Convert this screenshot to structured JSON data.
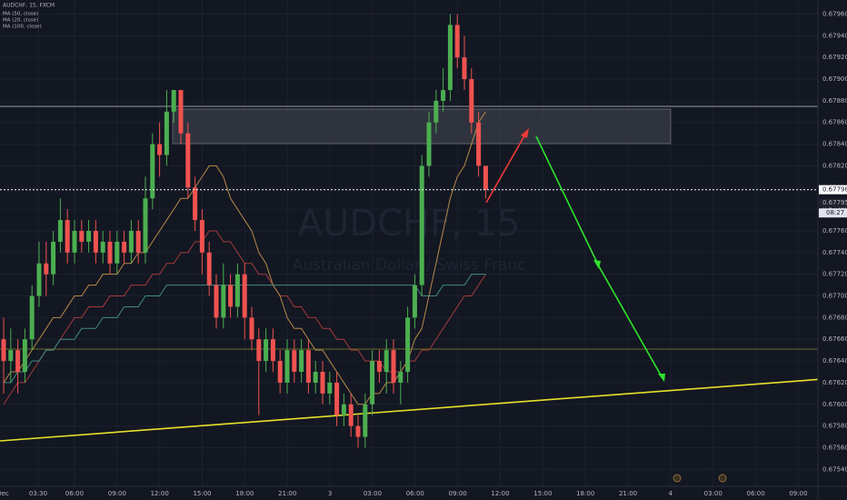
{
  "chart_data": {
    "type": "candlestick",
    "title": "AUDCHF, 15, FXCM",
    "watermark": "AUDCHF, 15",
    "watermark_subtitle": "Australian Dollar / Swiss Franc",
    "up_color": "#4caf50",
    "down_color": "#ef5350",
    "candles": {
      "open": [
        0.6766,
        0.6764,
        0.6765,
        0.6763,
        0.6766,
        0.677,
        0.6773,
        0.6772,
        0.6775,
        0.6777,
        0.6774,
        0.6776,
        0.6775,
        0.6776,
        0.6774,
        0.6775,
        0.6773,
        0.6775,
        0.6774,
        0.6776,
        0.6774,
        0.6779,
        0.6784,
        0.6783,
        0.6787,
        0.6789,
        0.6785,
        0.678,
        0.6777,
        0.6774,
        0.6771,
        0.6768,
        0.6771,
        0.6769,
        0.6772,
        0.6768,
        0.6766,
        0.6764,
        0.6766,
        0.6764,
        0.6762,
        0.6765,
        0.6763,
        0.6765,
        0.6762,
        0.6763,
        0.6761,
        0.6762,
        0.6759,
        0.676,
        0.6758,
        0.6757,
        0.676,
        0.6764,
        0.6763,
        0.6765,
        0.6762,
        0.6763,
        0.6768,
        0.6771,
        0.6782,
        0.6786,
        0.6788,
        0.6789,
        0.6795,
        0.6792,
        0.679,
        0.6786,
        0.6782
      ],
      "high": [
        0.6768,
        0.6767,
        0.6766,
        0.6767,
        0.6771,
        0.6775,
        0.6775,
        0.6776,
        0.6779,
        0.6778,
        0.6777,
        0.6777,
        0.6777,
        0.6777,
        0.6776,
        0.6776,
        0.6776,
        0.6776,
        0.6777,
        0.6777,
        0.6781,
        0.6785,
        0.6786,
        0.6789,
        0.6789,
        0.6789,
        0.6786,
        0.6781,
        0.6778,
        0.6775,
        0.6772,
        0.6773,
        0.6772,
        0.6773,
        0.6773,
        0.6769,
        0.6767,
        0.6767,
        0.6767,
        0.6765,
        0.6766,
        0.6766,
        0.6766,
        0.6766,
        0.6764,
        0.6764,
        0.6763,
        0.6763,
        0.6761,
        0.6761,
        0.6759,
        0.6761,
        0.6765,
        0.6765,
        0.6766,
        0.6766,
        0.6764,
        0.6769,
        0.6772,
        0.6783,
        0.6787,
        0.6789,
        0.6791,
        0.6796,
        0.6796,
        0.6794,
        0.6791,
        0.6787,
        0.6782
      ],
      "low": [
        0.6761,
        0.6762,
        0.6761,
        0.6762,
        0.6765,
        0.6769,
        0.677,
        0.6771,
        0.6774,
        0.6773,
        0.6773,
        0.6774,
        0.6774,
        0.6773,
        0.6773,
        0.6772,
        0.6772,
        0.6773,
        0.6773,
        0.6773,
        0.6773,
        0.6778,
        0.6781,
        0.6782,
        0.6786,
        0.6784,
        0.6779,
        0.6776,
        0.6772,
        0.677,
        0.6767,
        0.6767,
        0.6768,
        0.6768,
        0.6766,
        0.6765,
        0.6759,
        0.6763,
        0.6763,
        0.6761,
        0.6761,
        0.6762,
        0.6762,
        0.6761,
        0.6761,
        0.676,
        0.676,
        0.6758,
        0.6758,
        0.6757,
        0.6756,
        0.6756,
        0.6759,
        0.6762,
        0.6761,
        0.6761,
        0.676,
        0.6762,
        0.6767,
        0.677,
        0.6781,
        0.6785,
        0.6787,
        0.6788,
        0.6791,
        0.6789,
        0.6785,
        0.6781,
        0.6779
      ],
      "close": [
        0.6764,
        0.6765,
        0.6763,
        0.6766,
        0.677,
        0.6773,
        0.6772,
        0.6775,
        0.6777,
        0.6774,
        0.6776,
        0.6775,
        0.6776,
        0.6774,
        0.6775,
        0.6773,
        0.6775,
        0.6774,
        0.6776,
        0.6774,
        0.6779,
        0.6784,
        0.6783,
        0.6787,
        0.6789,
        0.6785,
        0.678,
        0.6777,
        0.6774,
        0.6771,
        0.6768,
        0.6771,
        0.6769,
        0.6772,
        0.6768,
        0.6766,
        0.6764,
        0.6766,
        0.6764,
        0.6762,
        0.6765,
        0.6763,
        0.6765,
        0.6762,
        0.6763,
        0.6761,
        0.6762,
        0.6759,
        0.676,
        0.6758,
        0.6757,
        0.676,
        0.6764,
        0.6763,
        0.6765,
        0.6762,
        0.6763,
        0.6768,
        0.6771,
        0.6782,
        0.6786,
        0.6788,
        0.6789,
        0.6795,
        0.6792,
        0.679,
        0.6786,
        0.6782,
        0.67798
      ]
    },
    "series": [
      {
        "name": "MA (50, close)",
        "color": "#a33b3b",
        "values": [
          0.676,
          0.6761,
          0.6762,
          0.6762,
          0.6763,
          0.6764,
          0.6765,
          0.6765,
          0.6766,
          0.6767,
          0.6768,
          0.6768,
          0.6769,
          0.6769,
          0.6769,
          0.677,
          0.677,
          0.677,
          0.6771,
          0.6771,
          0.6771,
          0.6772,
          0.6772,
          0.6773,
          0.6773,
          0.6774,
          0.6774,
          0.6775,
          0.6775,
          0.6776,
          0.6776,
          0.6775,
          0.6775,
          0.6774,
          0.6773,
          0.6773,
          0.6772,
          0.6772,
          0.6771,
          0.677,
          0.677,
          0.6769,
          0.6769,
          0.6768,
          0.6768,
          0.6767,
          0.6767,
          0.6766,
          0.6766,
          0.6765,
          0.6765,
          0.6764,
          0.6764,
          0.6764,
          0.6763,
          0.6763,
          0.6763,
          0.6764,
          0.6764,
          0.6765,
          0.6765,
          0.6766,
          0.6767,
          0.6768,
          0.6769,
          0.677,
          0.677,
          0.6771,
          0.6772
        ]
      },
      {
        "name": "MA (20, close)",
        "color": "#b8894a",
        "values": [
          0.6762,
          0.6763,
          0.6763,
          0.6764,
          0.6765,
          0.6766,
          0.6767,
          0.6768,
          0.6768,
          0.6769,
          0.677,
          0.677,
          0.6771,
          0.6771,
          0.6772,
          0.6772,
          0.6772,
          0.6773,
          0.6773,
          0.6774,
          0.6774,
          0.6775,
          0.6776,
          0.6777,
          0.6778,
          0.6779,
          0.6779,
          0.678,
          0.6781,
          0.6782,
          0.6782,
          0.6781,
          0.6779,
          0.6778,
          0.6777,
          0.6776,
          0.6774,
          0.6773,
          0.6771,
          0.677,
          0.6768,
          0.6767,
          0.6767,
          0.6766,
          0.6765,
          0.6765,
          0.6764,
          0.6763,
          0.6762,
          0.6761,
          0.676,
          0.676,
          0.6761,
          0.6761,
          0.6762,
          0.6762,
          0.6763,
          0.6764,
          0.6766,
          0.6767,
          0.677,
          0.6773,
          0.6776,
          0.6779,
          0.6781,
          0.6782,
          0.6784,
          0.6786,
          0.6787
        ]
      },
      {
        "name": "MA (100, close)",
        "color": "#3f8c82",
        "values": [
          0.6762,
          0.6762,
          0.6763,
          0.6763,
          0.6764,
          0.6764,
          0.6765,
          0.6765,
          0.6766,
          0.6766,
          0.6766,
          0.6767,
          0.6767,
          0.6767,
          0.6768,
          0.6768,
          0.6768,
          0.6769,
          0.6769,
          0.6769,
          0.677,
          0.677,
          0.677,
          0.6771,
          0.6771,
          0.6771,
          0.6771,
          0.6771,
          0.6771,
          0.6771,
          0.6771,
          0.6771,
          0.6771,
          0.6771,
          0.6771,
          0.6771,
          0.6771,
          0.6771,
          0.6771,
          0.6771,
          0.6771,
          0.6771,
          0.6771,
          0.6771,
          0.6771,
          0.6771,
          0.6771,
          0.6771,
          0.6771,
          0.6771,
          0.6771,
          0.6771,
          0.6771,
          0.6771,
          0.6771,
          0.6771,
          0.6771,
          0.6771,
          0.6771,
          0.677,
          0.677,
          0.677,
          0.6771,
          0.6771,
          0.6771,
          0.6771,
          0.6772,
          0.6772,
          0.6772
        ]
      }
    ],
    "last_price": 0.67798,
    "bid_price": 0.67795,
    "countdown": "08:27",
    "x_labels": [
      "Dec",
      "03:30",
      "06:00",
      "09:00",
      "12:00",
      "15:00",
      "18:00",
      "21:00",
      "3",
      "03:00",
      "06:00",
      "09:00",
      "12:00",
      "15:00",
      "18:00",
      "21:00",
      "4",
      "03:00",
      "06:00",
      "09:00"
    ],
    "ylim": [
      0.67526,
      0.67973
    ],
    "yticks": [
      {
        "value": 0.6754,
        "label": "0.67540"
      },
      {
        "value": 0.6756,
        "label": "0.67560"
      },
      {
        "value": 0.6758,
        "label": "0.67580"
      },
      {
        "value": 0.676,
        "label": "0.67600"
      },
      {
        "value": 0.6762,
        "label": "0.67620"
      },
      {
        "value": 0.6764,
        "label": "0.67640"
      },
      {
        "value": 0.6766,
        "label": "0.67660"
      },
      {
        "value": 0.6768,
        "label": "0.67680"
      },
      {
        "value": 0.677,
        "label": "0.67700"
      },
      {
        "value": 0.6772,
        "label": "0.67720"
      },
      {
        "value": 0.6774,
        "label": "0.67740"
      },
      {
        "value": 0.6776,
        "label": "0.67760"
      },
      {
        "value": 0.6778,
        "label": "0.67780"
      },
      {
        "value": 0.678,
        "label": "0.67800"
      },
      {
        "value": 0.6782,
        "label": "0.67820"
      },
      {
        "value": 0.6784,
        "label": "0.67840"
      },
      {
        "value": 0.6786,
        "label": "0.67860"
      },
      {
        "value": 0.6788,
        "label": "0.67880"
      },
      {
        "value": 0.679,
        "label": "0.67900"
      },
      {
        "value": 0.6792,
        "label": "0.67920"
      },
      {
        "value": 0.6794,
        "label": "0.67940"
      },
      {
        "value": 0.6796,
        "label": "0.67960"
      }
    ],
    "grid": true
  }
}
